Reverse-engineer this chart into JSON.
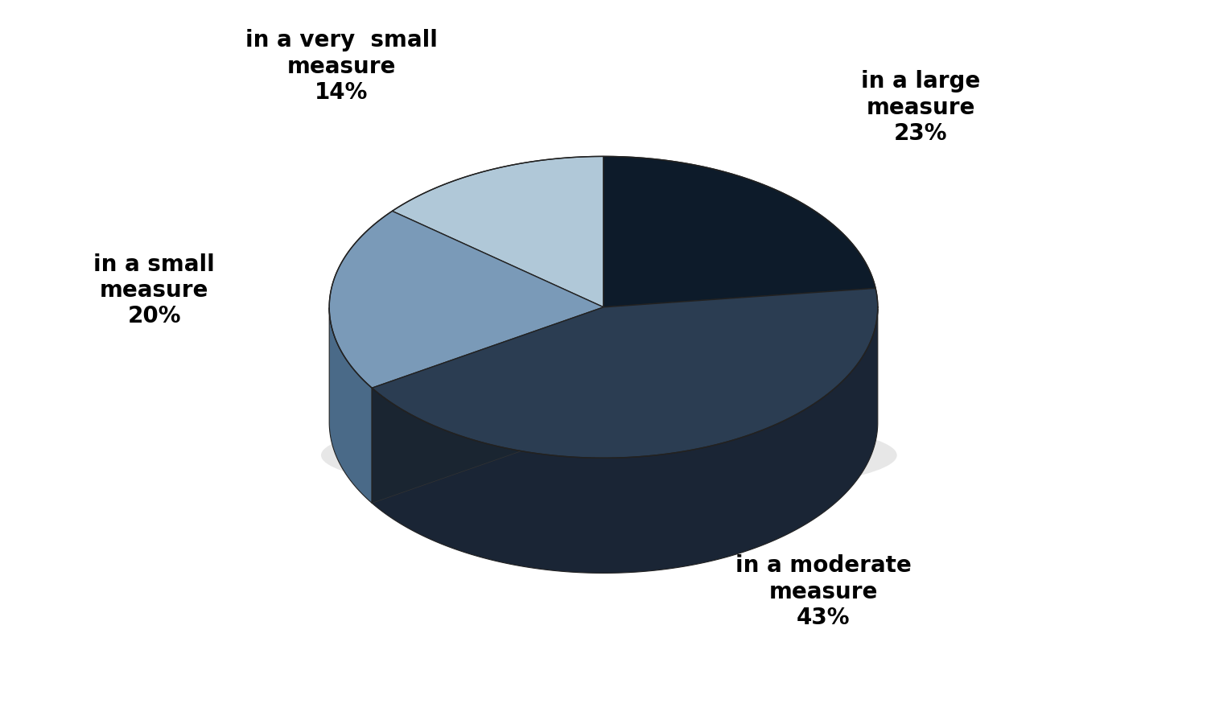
{
  "slices": [
    {
      "label": "in a large\nmeasure\n23%",
      "value": 23,
      "color": "#0d1b2a",
      "side_color": "#0a1520"
    },
    {
      "label": "in a moderate\nmeasure\n43%",
      "value": 43,
      "color": "#2b3d52",
      "side_color": "#1a2535"
    },
    {
      "label": "in a small\nmeasure\n20%",
      "value": 20,
      "color": "#7a9ab8",
      "side_color": "#4a6a88"
    },
    {
      "label": "in a very  small\nmeasure\n14%",
      "value": 14,
      "color": "#b0c8d8",
      "side_color": "#7090a8"
    }
  ],
  "background_color": "#ffffff",
  "figsize": [
    15,
    9
  ],
  "dpi": 100,
  "startangle": 90,
  "font_size": 20,
  "font_weight": "bold"
}
